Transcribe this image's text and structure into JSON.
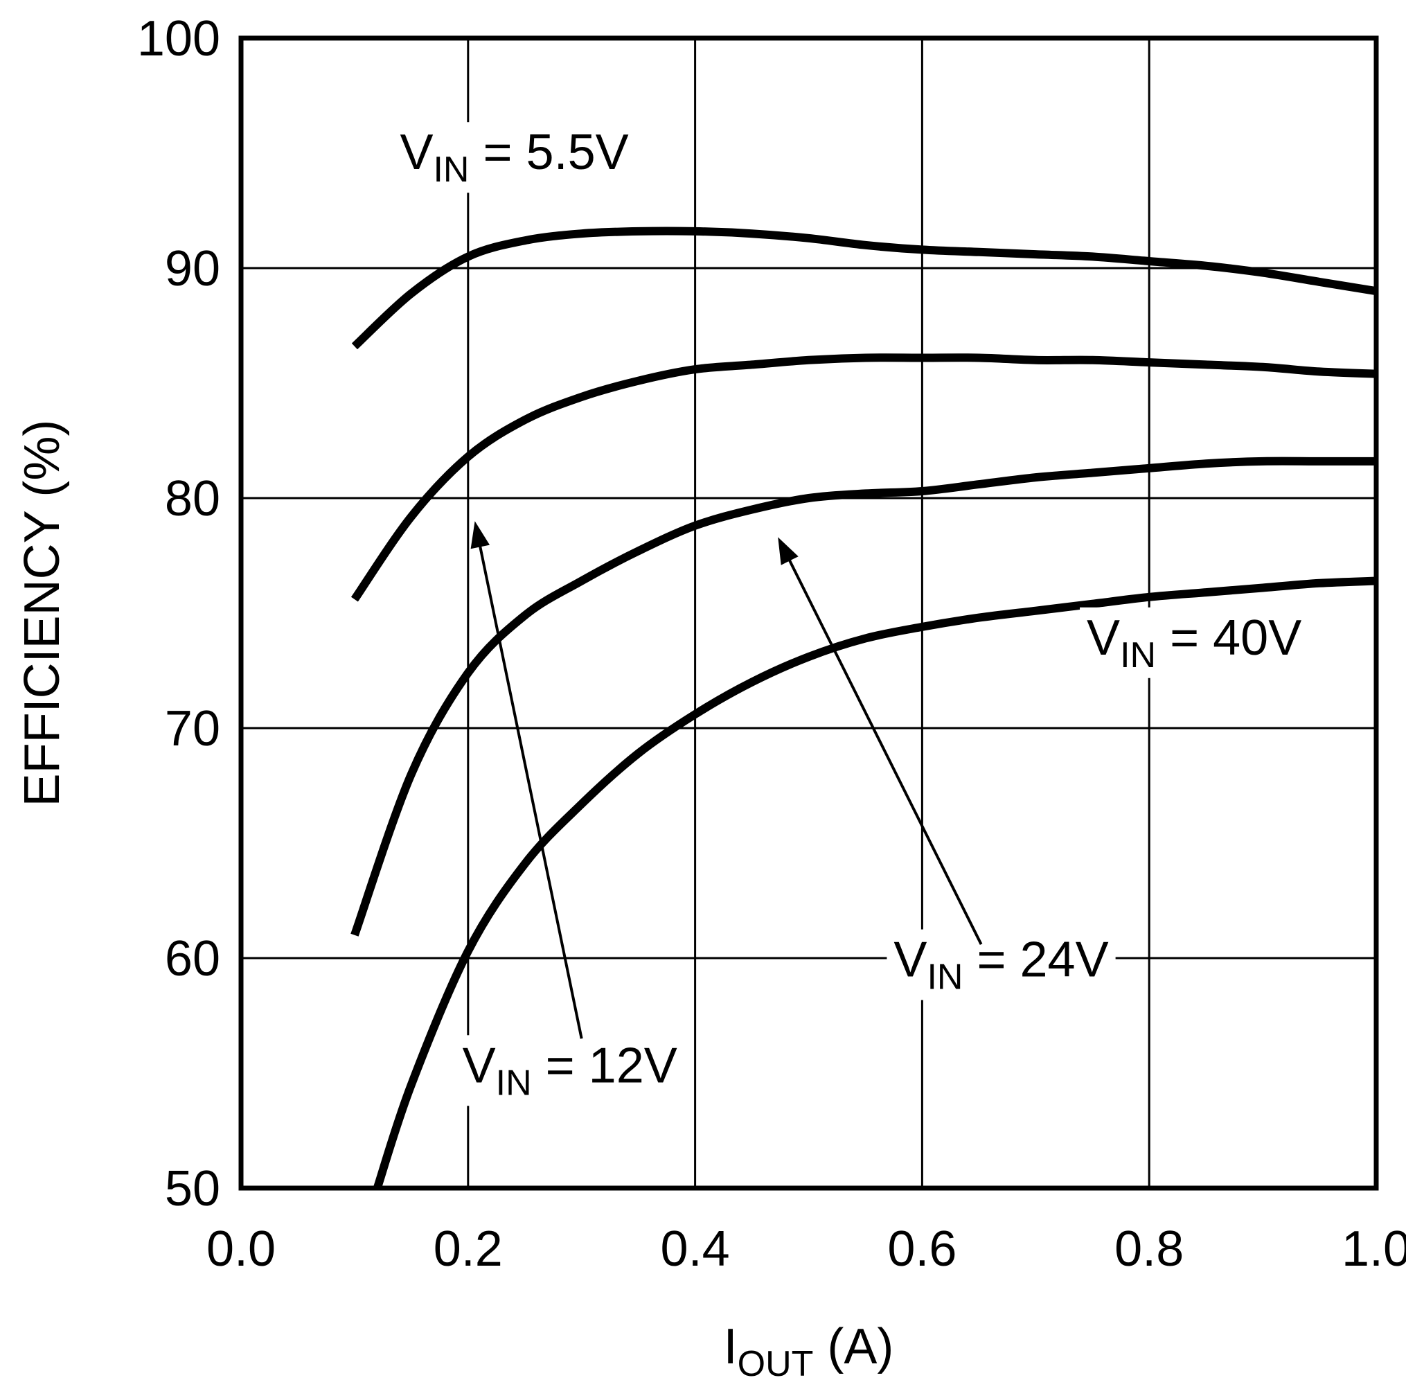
{
  "page": {
    "background": "#ffffff"
  },
  "chart_data": {
    "type": "line",
    "title": "",
    "xlabel": {
      "pre": "I",
      "sub": "OUT",
      "post": " (A)"
    },
    "ylabel": "EFFICIENCY (%)",
    "xlim": [
      0.0,
      1.0
    ],
    "ylim": [
      50,
      100
    ],
    "xticks": [
      "0.0",
      "0.2",
      "0.4",
      "0.6",
      "0.8",
      "1.0"
    ],
    "yticks": [
      "50",
      "60",
      "70",
      "80",
      "90",
      "100"
    ],
    "grid": true,
    "legend_position": "none",
    "line_color": "#000000",
    "grid_color": "#000000",
    "frame_color": "#000000",
    "background": "#ffffff",
    "series": [
      {
        "name": "VIN = 5.5V",
        "x": [
          0.1,
          0.15,
          0.2,
          0.25,
          0.3,
          0.35,
          0.4,
          0.45,
          0.5,
          0.55,
          0.6,
          0.65,
          0.7,
          0.75,
          0.8,
          0.85,
          0.9,
          0.95,
          1.0
        ],
        "y": [
          86.6,
          88.9,
          90.5,
          91.2,
          91.5,
          91.6,
          91.6,
          91.5,
          91.3,
          91.0,
          90.8,
          90.7,
          90.6,
          90.5,
          90.3,
          90.1,
          89.8,
          89.4,
          89.0
        ]
      },
      {
        "name": "VIN = 12V",
        "x": [
          0.1,
          0.15,
          0.2,
          0.25,
          0.3,
          0.35,
          0.4,
          0.45,
          0.5,
          0.55,
          0.6,
          0.65,
          0.7,
          0.75,
          0.8,
          0.85,
          0.9,
          0.95,
          1.0
        ],
        "y": [
          75.6,
          79.2,
          81.8,
          83.4,
          84.4,
          85.1,
          85.6,
          85.8,
          86.0,
          86.1,
          86.1,
          86.1,
          86.0,
          86.0,
          85.9,
          85.8,
          85.7,
          85.5,
          85.4
        ]
      },
      {
        "name": "VIN = 24V",
        "x": [
          0.1,
          0.15,
          0.2,
          0.25,
          0.3,
          0.35,
          0.4,
          0.45,
          0.5,
          0.55,
          0.6,
          0.65,
          0.7,
          0.75,
          0.8,
          0.85,
          0.9,
          0.95,
          1.0
        ],
        "y": [
          61.0,
          68.0,
          72.4,
          74.9,
          76.4,
          77.7,
          78.8,
          79.5,
          80.0,
          80.2,
          80.3,
          80.6,
          80.9,
          81.1,
          81.3,
          81.5,
          81.6,
          81.6,
          81.6
        ]
      },
      {
        "name": "VIN = 40V",
        "x": [
          0.12,
          0.15,
          0.2,
          0.25,
          0.3,
          0.35,
          0.4,
          0.45,
          0.5,
          0.55,
          0.6,
          0.65,
          0.7,
          0.75,
          0.8,
          0.85,
          0.9,
          0.95,
          1.0
        ],
        "y": [
          50.0,
          54.5,
          60.3,
          64.1,
          66.7,
          68.9,
          70.6,
          72.0,
          73.1,
          73.9,
          74.4,
          74.8,
          75.1,
          75.4,
          75.7,
          75.9,
          76.1,
          76.3,
          76.4
        ]
      }
    ],
    "annotations": {
      "labels": [
        {
          "id": "label-vin-5p5v",
          "pre": "V",
          "sub": "IN",
          "post": " = 5.5V",
          "x": 0.14,
          "y": 94.3
        },
        {
          "id": "label-vin-12v",
          "pre": "V",
          "sub": "IN",
          "post": " = 12V",
          "x": 0.195,
          "y": 54.6
        },
        {
          "id": "label-vin-24v",
          "pre": "V",
          "sub": "IN",
          "post": " = 24V",
          "x": 0.575,
          "y": 59.2
        },
        {
          "id": "label-vin-40v",
          "pre": "V",
          "sub": "IN",
          "post": " = 40V",
          "x": 0.745,
          "y": 73.2
        }
      ],
      "arrows": [
        {
          "id": "arrow-to-12v-curve",
          "x1": 0.3,
          "y1": 56.5,
          "x2": 0.206,
          "y2": 79.0
        },
        {
          "id": "arrow-to-24v-curve",
          "x1": 0.652,
          "y1": 60.6,
          "x2": 0.473,
          "y2": 78.3
        }
      ]
    }
  }
}
